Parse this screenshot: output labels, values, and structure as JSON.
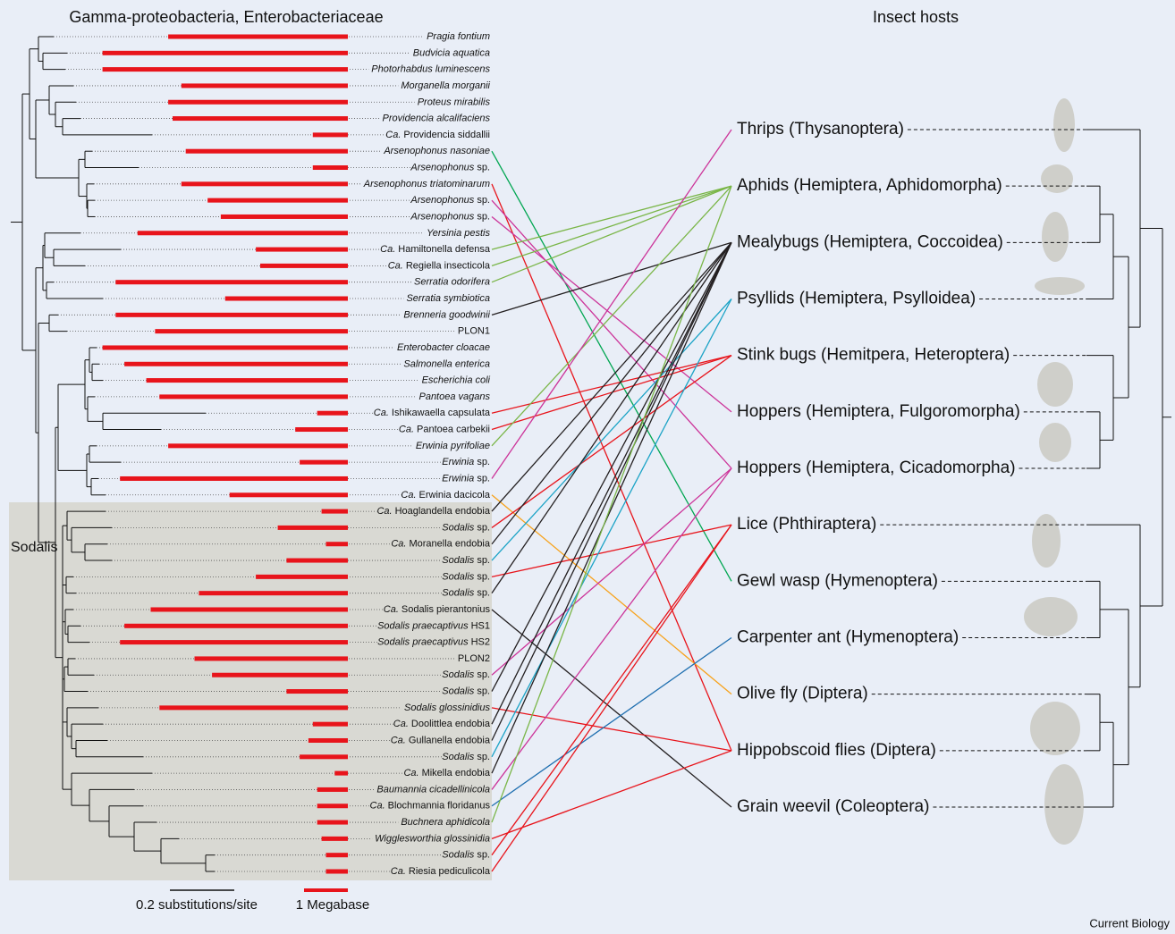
{
  "title_left": "Gamma-proteobacteria, Enterobacteriaceae",
  "title_right": "Insect hosts",
  "clade_label": "Sodalis",
  "taxa": [
    {
      "italic": "Pragia fontium",
      "genome_size_mb": 4.1
    },
    {
      "italic": "Budvicia aquatica",
      "genome_size_mb": 5.6
    },
    {
      "italic": "Photorhabdus luminescens",
      "genome_size_mb": 5.6
    },
    {
      "italic": "Morganella morganii",
      "genome_size_mb": 3.8
    },
    {
      "italic": "Proteus mirabilis",
      "genome_size_mb": 4.1
    },
    {
      "italic": "Providencia alcalifaciens",
      "genome_size_mb": 4.0
    },
    {
      "italic": "Ca.",
      "roman": "Providencia siddallii",
      "genome_size_mb": 0.8
    },
    {
      "italic": "Arsenophonus nasoniae",
      "genome_size_mb": 3.7
    },
    {
      "italic": "Arsenophonus",
      "roman": "sp.",
      "genome_size_mb": 0.8
    },
    {
      "italic": "Arsenophonus triatominarum",
      "genome_size_mb": 3.8
    },
    {
      "italic": "Arsenophonus",
      "roman": "sp.",
      "genome_size_mb": 3.2
    },
    {
      "italic": "Arsenophonus",
      "roman": "sp.",
      "genome_size_mb": 2.9
    },
    {
      "italic": "Yersinia pestis",
      "genome_size_mb": 4.8
    },
    {
      "italic": "Ca.",
      "roman": "Hamiltonella defensa",
      "genome_size_mb": 2.1
    },
    {
      "italic": "Ca.",
      "roman": "Regiella insecticola",
      "genome_size_mb": 2.0
    },
    {
      "italic": "Serratia odorifera",
      "genome_size_mb": 5.3
    },
    {
      "italic": "Serratia symbiotica",
      "genome_size_mb": 2.8
    },
    {
      "italic": "Brenneria goodwinii",
      "genome_size_mb": 5.3
    },
    {
      "roman": "PLON1",
      "genome_size_mb": 4.4
    },
    {
      "italic": "Enterobacter cloacae",
      "genome_size_mb": 5.6
    },
    {
      "italic": "Salmonella enterica",
      "genome_size_mb": 5.1
    },
    {
      "italic": "Escherichia coli",
      "genome_size_mb": 4.6
    },
    {
      "italic": "Pantoea vagans",
      "genome_size_mb": 4.3
    },
    {
      "italic": "Ca.",
      "roman": "Ishikawaella capsulata",
      "genome_size_mb": 0.7
    },
    {
      "italic": "Ca.",
      "roman": "Pantoea carbekii",
      "genome_size_mb": 1.2
    },
    {
      "italic": "Erwinia pyrifoliae",
      "genome_size_mb": 4.1
    },
    {
      "italic": "Erwinia",
      "roman": "sp.",
      "genome_size_mb": 1.1
    },
    {
      "italic": "Erwinia",
      "roman": "sp.",
      "genome_size_mb": 5.2
    },
    {
      "italic": "Ca.",
      "roman": "Erwinia dacicola",
      "genome_size_mb": 2.7
    },
    {
      "italic": "Ca.",
      "roman": "Hoaglandella endobia",
      "genome_size_mb": 0.6
    },
    {
      "italic": "Sodalis",
      "roman": "sp.",
      "genome_size_mb": 1.6
    },
    {
      "italic": "Ca.",
      "roman": "Moranella endobia",
      "genome_size_mb": 0.5
    },
    {
      "italic": "Sodalis",
      "roman": "sp.",
      "genome_size_mb": 1.4
    },
    {
      "italic": "Sodalis",
      "roman": "sp.",
      "genome_size_mb": 2.1
    },
    {
      "italic": "Sodalis",
      "roman": "sp.",
      "genome_size_mb": 3.4
    },
    {
      "italic": "Ca.",
      "roman": "Sodalis pierantonius",
      "genome_size_mb": 4.5
    },
    {
      "italic": "Sodalis praecaptivus",
      "roman": "HS1",
      "genome_size_mb": 5.1
    },
    {
      "italic": "Sodalis praecaptivus",
      "roman": "HS2",
      "genome_size_mb": 5.2
    },
    {
      "roman": "PLON2",
      "genome_size_mb": 3.5
    },
    {
      "italic": "Sodalis",
      "roman": "sp.",
      "genome_size_mb": 3.1
    },
    {
      "italic": "Sodalis",
      "roman": "sp.",
      "genome_size_mb": 1.4
    },
    {
      "italic": "Sodalis glossinidius",
      "genome_size_mb": 4.3
    },
    {
      "italic": "Ca.",
      "roman": "Doolittlea endobia",
      "genome_size_mb": 0.8
    },
    {
      "italic": "Ca.",
      "roman": "Gullanella endobia",
      "genome_size_mb": 0.9
    },
    {
      "italic": "Sodalis",
      "roman": "sp.",
      "genome_size_mb": 1.1
    },
    {
      "italic": "Ca.",
      "roman": "Mikella endobia",
      "genome_size_mb": 0.3
    },
    {
      "italic": "Baumannia cicadellinicola",
      "genome_size_mb": 0.7
    },
    {
      "italic": "Ca.",
      "roman": "Blochmannia floridanus",
      "genome_size_mb": 0.7
    },
    {
      "italic": "Buchnera aphidicola",
      "genome_size_mb": 0.7
    },
    {
      "italic": "Wigglesworthia glossinidia",
      "genome_size_mb": 0.6
    },
    {
      "italic": "Sodalis",
      "roman": "sp.",
      "genome_size_mb": 0.5
    },
    {
      "italic": "Ca.",
      "roman": "Riesia pediculicola",
      "genome_size_mb": 0.5
    }
  ],
  "hosts": [
    "Thrips (Thysanoptera)",
    "Aphids (Hemiptera, Aphidomorpha)",
    "Mealybugs (Hemiptera, Coccoidea)",
    "Psyllids (Hemiptera, Psylloidea)",
    "Stink bugs (Hemitpera, Heteroptera)",
    "Hoppers (Hemiptera, Fulgoromorpha)",
    "Hoppers (Hemiptera, Cicadomorpha)",
    "Lice (Phthiraptera)",
    "Gewl wasp (Hymenoptera)",
    "Carpenter ant (Hymenoptera)",
    "Olive fly (Diptera)",
    "Hippobscoid flies (Diptera)",
    "Grain weevil (Coleoptera)"
  ],
  "links": [
    {
      "taxon": 7,
      "host": 8,
      "color": "#00a651"
    },
    {
      "taxon": 9,
      "host": 11,
      "color": "#e8141b"
    },
    {
      "taxon": 10,
      "host": 6,
      "color": "#cc3399"
    },
    {
      "taxon": 11,
      "host": 5,
      "color": "#cc3399"
    },
    {
      "taxon": 13,
      "host": 1,
      "color": "#7ab648"
    },
    {
      "taxon": 14,
      "host": 1,
      "color": "#7ab648"
    },
    {
      "taxon": 15,
      "host": 1,
      "color": "#7ab648"
    },
    {
      "taxon": 17,
      "host": 2,
      "color": "#231f20"
    },
    {
      "taxon": 23,
      "host": 4,
      "color": "#e8141b"
    },
    {
      "taxon": 24,
      "host": 4,
      "color": "#e8141b"
    },
    {
      "taxon": 25,
      "host": 1,
      "color": "#7ab648"
    },
    {
      "taxon": 27,
      "host": 0,
      "color": "#cc3399"
    },
    {
      "taxon": 28,
      "host": 10,
      "color": "#f7a21b"
    },
    {
      "taxon": 29,
      "host": 2,
      "color": "#231f20"
    },
    {
      "taxon": 30,
      "host": 4,
      "color": "#e8141b"
    },
    {
      "taxon": 31,
      "host": 2,
      "color": "#231f20"
    },
    {
      "taxon": 32,
      "host": 3,
      "color": "#1ba3c6"
    },
    {
      "taxon": 33,
      "host": 7,
      "color": "#e8141b"
    },
    {
      "taxon": 34,
      "host": 2,
      "color": "#231f20"
    },
    {
      "taxon": 35,
      "host": 12,
      "color": "#231f20"
    },
    {
      "taxon": 39,
      "host": 6,
      "color": "#cc3399"
    },
    {
      "taxon": 40,
      "host": 2,
      "color": "#231f20"
    },
    {
      "taxon": 41,
      "host": 11,
      "color": "#e8141b"
    },
    {
      "taxon": 42,
      "host": 2,
      "color": "#231f20"
    },
    {
      "taxon": 43,
      "host": 2,
      "color": "#231f20"
    },
    {
      "taxon": 44,
      "host": 3,
      "color": "#1ba3c6"
    },
    {
      "taxon": 45,
      "host": 2,
      "color": "#231f20"
    },
    {
      "taxon": 46,
      "host": 6,
      "color": "#cc3399"
    },
    {
      "taxon": 47,
      "host": 9,
      "color": "#1f6fb0"
    },
    {
      "taxon": 48,
      "host": 1,
      "color": "#7ab648"
    },
    {
      "taxon": 49,
      "host": 11,
      "color": "#e8141b"
    },
    {
      "taxon": 50,
      "host": 7,
      "color": "#e8141b"
    },
    {
      "taxon": 51,
      "host": 7,
      "color": "#e8141b"
    }
  ],
  "scale_bars": {
    "substitutions": "0.2 substitutions/site",
    "genome": "1 Megabase"
  },
  "credit": "Current Biology"
}
